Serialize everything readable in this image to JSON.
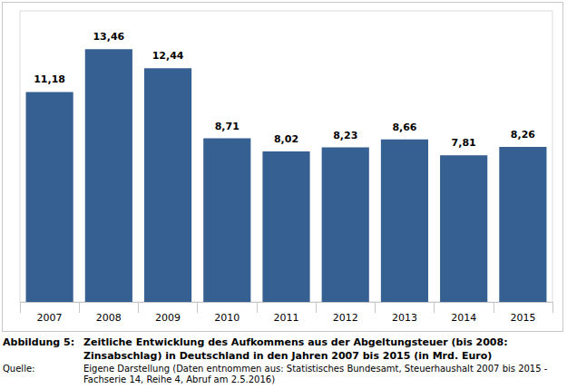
{
  "chart_data": {
    "type": "bar",
    "figure_label": "Abbildung 5:",
    "title": "Zeitliche Entwicklung des Aufkommens aus der Abgeltungsteuer (bis 2008: Zinsabschlag) in Deutschland in den Jahren 2007 bis 2015 (in Mrd. Euro)",
    "source_label": "Quelle:",
    "source": "Eigene Darstellung (Daten entnommen aus: Statistisches Bundesamt, Steuerhaushalt 2007 bis 2015 - Fachserie 14, Reihe 4, Abruf am 2.5.2016)",
    "categories": [
      "2007",
      "2008",
      "2009",
      "2010",
      "2011",
      "2012",
      "2013",
      "2014",
      "2015"
    ],
    "values": [
      11.18,
      13.46,
      12.44,
      8.71,
      8.02,
      8.23,
      8.66,
      7.81,
      8.26
    ],
    "value_labels": [
      "11,18",
      "13,46",
      "12,44",
      "8,71",
      "8,02",
      "8,23",
      "8,66",
      "7,81",
      "8,26"
    ],
    "color": "#365f92",
    "ylim": [
      0,
      15.5
    ],
    "data_labels": true,
    "tick_labels": "x",
    "grid": false
  }
}
